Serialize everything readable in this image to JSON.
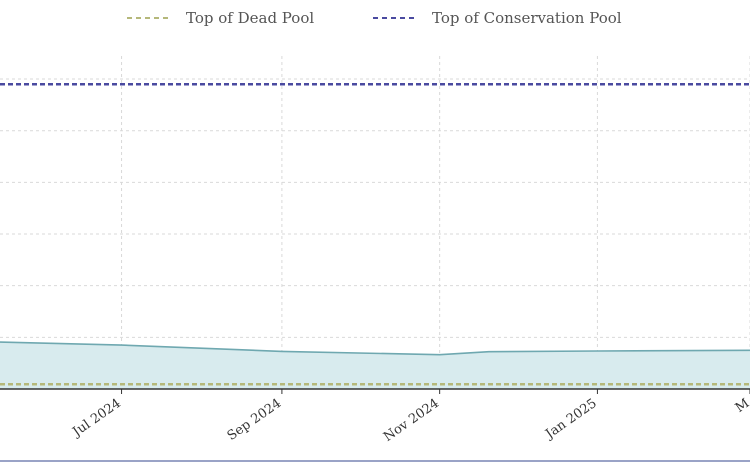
{
  "chart_data": {
    "type": "area",
    "legend": [
      {
        "label": "Top of Dead Pool",
        "color": "#b5b87a",
        "style": "dashed"
      },
      {
        "label": "Top of Conservation Pool",
        "color": "#4a4aa0",
        "style": "dashed"
      }
    ],
    "x_tick_labels": [
      "Jul 2024",
      "Sep 2024",
      "Nov 2024",
      "Jan 2025",
      "M"
    ],
    "x_ticks": [
      "2024-07-01",
      "2024-09-01",
      "2024-11-01",
      "2025-01-01",
      "2025-03-01"
    ],
    "xlim": [
      "2024-05-15",
      "2025-03-01"
    ],
    "ylim": [
      0,
      100
    ],
    "grid": true,
    "legend_position": "top",
    "series": [
      {
        "type": "area",
        "color": "#6fa8b0",
        "fill": "#d8ebee",
        "points": [
          {
            "x": "2024-05-15",
            "y": 12.7
          },
          {
            "x": "2024-07-01",
            "y": 11.9
          },
          {
            "x": "2024-09-01",
            "y": 10.2
          },
          {
            "x": "2024-11-01",
            "y": 9.3
          },
          {
            "x": "2024-11-20",
            "y": 10.1
          },
          {
            "x": "2025-01-01",
            "y": 10.3
          },
          {
            "x": "2025-03-01",
            "y": 10.5
          }
        ]
      },
      {
        "type": "hline",
        "color": "#b5b87a",
        "y": 1.3
      },
      {
        "type": "hline",
        "color": "#4a4aa0",
        "y": 82.6
      }
    ]
  }
}
